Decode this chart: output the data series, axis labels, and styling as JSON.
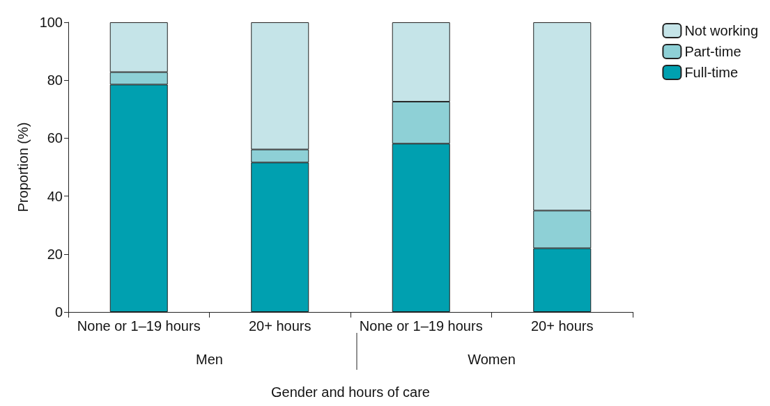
{
  "chart_data": {
    "type": "bar",
    "stacked": true,
    "xlabel": "Gender and hours of care",
    "ylabel": "Proportion (%)",
    "categories": [
      "None or 1–19 hours",
      "20+ hours",
      "None or 1–19 hours",
      "20+ hours"
    ],
    "series": [
      {
        "name": "Full-time",
        "color": "#00a0b0",
        "values": [
          78.5,
          51.6,
          58.1,
          22.0
        ]
      },
      {
        "name": "Part-time",
        "color": "#8ed0d6",
        "values": [
          4.3,
          4.5,
          14.5,
          13.0
        ]
      },
      {
        "name": "Not working",
        "color": "#c5e4e8",
        "values": [
          17.2,
          43.9,
          27.4,
          65.0
        ]
      }
    ],
    "annotations": [
      "Men",
      "Women"
    ],
    "ylim": [
      0,
      100
    ],
    "yticks": [
      0,
      20,
      40,
      60,
      80,
      100
    ],
    "grid": false,
    "legend": "top right"
  }
}
